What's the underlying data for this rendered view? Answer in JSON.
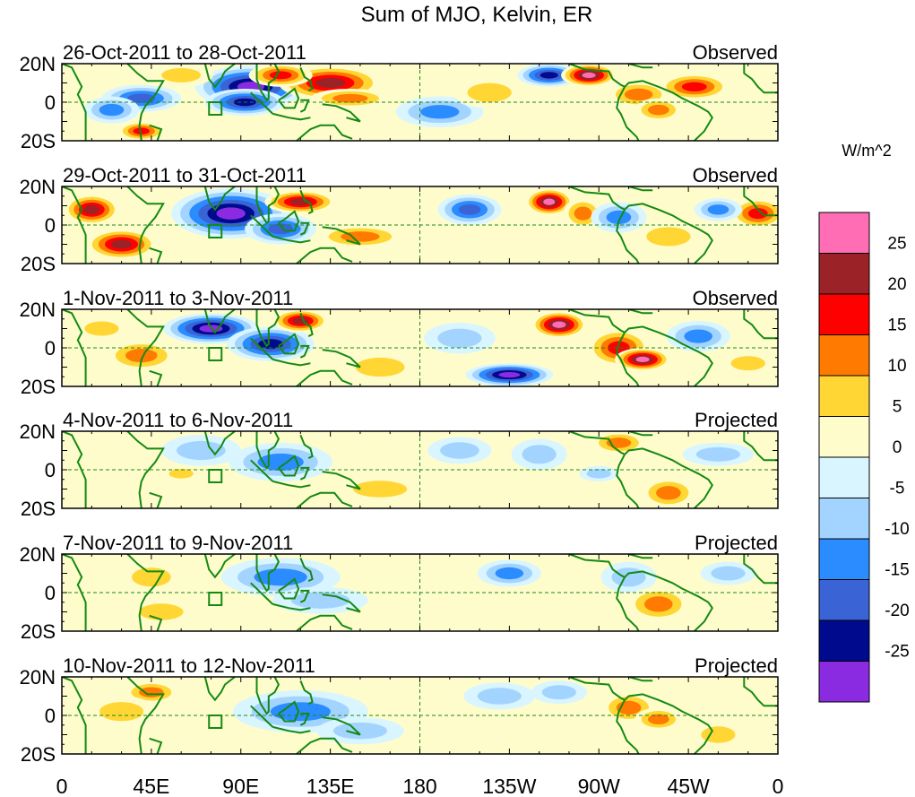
{
  "chart_data": {
    "type": "heatmap",
    "title": "Sum of MJO, Kelvin, ER",
    "units": "W/m^2",
    "x_ticks": [
      "0",
      "45E",
      "90E",
      "135E",
      "180",
      "135W",
      "90W",
      "45W",
      "0"
    ],
    "y_ticks": [
      "20N",
      "0",
      "20S"
    ],
    "xlim_deg_east": [
      0,
      360
    ],
    "ylim_deg": [
      -20,
      20
    ],
    "colorbar": {
      "labels": [
        "25",
        "20",
        "15",
        "10",
        "5",
        "0",
        "-5",
        "-10",
        "-15",
        "-20",
        "-25"
      ],
      "colors_top_to_bottom": [
        "#ff6eb4",
        "#9b2226",
        "#ff0000",
        "#ff7a00",
        "#ffd633",
        "#fffccc",
        "#d9f5ff",
        "#a3d4ff",
        "#2b8cff",
        "#3a63d6",
        "#000a8c",
        "#8a2be2"
      ]
    },
    "panels": [
      {
        "date_range": "26-Oct-2011 to 28-Oct-2011",
        "status": "Observed",
        "blobs": [
          {
            "lon": 95,
            "lat": 8,
            "rlon": 28,
            "rlat": 11,
            "v": -30
          },
          {
            "lon": 92,
            "lat": 0,
            "rlon": 20,
            "rlat": 7,
            "v": -25
          },
          {
            "lon": 40,
            "lat": 2,
            "rlon": 20,
            "rlat": 7,
            "v": -20
          },
          {
            "lon": 25,
            "lat": -4,
            "rlon": 14,
            "rlat": 7,
            "v": -14
          },
          {
            "lon": 135,
            "lat": 10,
            "rlon": 26,
            "rlat": 9,
            "v": 24
          },
          {
            "lon": 145,
            "lat": 2,
            "rlon": 20,
            "rlat": 5,
            "v": 14
          },
          {
            "lon": 110,
            "lat": 14,
            "rlon": 16,
            "rlat": 6,
            "v": 18
          },
          {
            "lon": 245,
            "lat": 14,
            "rlon": 16,
            "rlat": 6,
            "v": -24
          },
          {
            "lon": 265,
            "lat": 14,
            "rlon": 14,
            "rlat": 6,
            "v": 27
          },
          {
            "lon": 290,
            "lat": 4,
            "rlon": 16,
            "rlat": 7,
            "v": 14
          },
          {
            "lon": 300,
            "lat": -4,
            "rlon": 12,
            "rlat": 6,
            "v": 12
          },
          {
            "lon": 318,
            "lat": 8,
            "rlon": 18,
            "rlat": 7,
            "v": 20
          },
          {
            "lon": 40,
            "lat": -15,
            "rlon": 12,
            "rlat": 5,
            "v": 16
          },
          {
            "lon": 190,
            "lat": -5,
            "rlon": 22,
            "rlat": 8,
            "v": -12
          },
          {
            "lon": 215,
            "lat": 5,
            "rlon": 18,
            "rlat": 8,
            "v": 8
          },
          {
            "lon": 60,
            "lat": 14,
            "rlon": 16,
            "rlat": 6,
            "v": 10
          }
        ]
      },
      {
        "date_range": "29-Oct-2011 to 31-Oct-2011",
        "status": "Observed",
        "blobs": [
          {
            "lon": 85,
            "lat": 6,
            "rlon": 30,
            "rlat": 13,
            "v": -30
          },
          {
            "lon": 110,
            "lat": -2,
            "rlon": 18,
            "rlat": 8,
            "v": -16
          },
          {
            "lon": 30,
            "lat": -10,
            "rlon": 18,
            "rlat": 8,
            "v": 25
          },
          {
            "lon": 15,
            "lat": 8,
            "rlon": 14,
            "rlat": 8,
            "v": 22
          },
          {
            "lon": 120,
            "lat": 12,
            "rlon": 18,
            "rlat": 6,
            "v": 22
          },
          {
            "lon": 150,
            "lat": -6,
            "rlon": 22,
            "rlat": 6,
            "v": 14
          },
          {
            "lon": 205,
            "lat": 8,
            "rlon": 16,
            "rlat": 8,
            "v": -16
          },
          {
            "lon": 245,
            "lat": 12,
            "rlon": 12,
            "rlat": 7,
            "v": 26
          },
          {
            "lon": 262,
            "lat": 6,
            "rlon": 10,
            "rlat": 8,
            "v": 15
          },
          {
            "lon": 280,
            "lat": 4,
            "rlon": 14,
            "rlat": 8,
            "v": -14
          },
          {
            "lon": 305,
            "lat": -6,
            "rlon": 18,
            "rlat": 8,
            "v": 8
          },
          {
            "lon": 350,
            "lat": 6,
            "rlon": 14,
            "rlat": 8,
            "v": 20
          },
          {
            "lon": 330,
            "lat": 8,
            "rlon": 12,
            "rlat": 6,
            "v": -12
          }
        ]
      },
      {
        "date_range": "1-Nov-2011 to 3-Nov-2011",
        "status": "Observed",
        "blobs": [
          {
            "lon": 75,
            "lat": 10,
            "rlon": 24,
            "rlat": 8,
            "v": -30
          },
          {
            "lon": 105,
            "lat": 2,
            "rlon": 22,
            "rlat": 9,
            "v": -22
          },
          {
            "lon": 120,
            "lat": 14,
            "rlon": 14,
            "rlat": 6,
            "v": 22
          },
          {
            "lon": 40,
            "lat": -4,
            "rlon": 18,
            "rlat": 8,
            "v": 14
          },
          {
            "lon": 20,
            "lat": 10,
            "rlon": 14,
            "rlat": 6,
            "v": 10
          },
          {
            "lon": 225,
            "lat": -14,
            "rlon": 22,
            "rlat": 6,
            "v": -26
          },
          {
            "lon": 250,
            "lat": 12,
            "rlon": 14,
            "rlat": 7,
            "v": 27
          },
          {
            "lon": 280,
            "lat": 0,
            "rlon": 16,
            "rlat": 10,
            "v": 18
          },
          {
            "lon": 292,
            "lat": -6,
            "rlon": 14,
            "rlat": 6,
            "v": 26
          },
          {
            "lon": 320,
            "lat": 6,
            "rlon": 16,
            "rlat": 8,
            "v": -12
          },
          {
            "lon": 160,
            "lat": -10,
            "rlon": 20,
            "rlat": 8,
            "v": 8
          },
          {
            "lon": 200,
            "lat": 5,
            "rlon": 18,
            "rlat": 8,
            "v": -10
          },
          {
            "lon": 345,
            "lat": -8,
            "rlon": 14,
            "rlat": 6,
            "v": 6
          }
        ]
      },
      {
        "date_range": "4-Nov-2011 to 6-Nov-2011",
        "status": "Projected",
        "blobs": [
          {
            "lon": 110,
            "lat": 4,
            "rlon": 26,
            "rlat": 10,
            "v": -12
          },
          {
            "lon": 70,
            "lat": 10,
            "rlon": 20,
            "rlat": 8,
            "v": -8
          },
          {
            "lon": 60,
            "lat": -2,
            "rlon": 10,
            "rlat": 4,
            "v": 10
          },
          {
            "lon": 35,
            "lat": 2,
            "rlon": 14,
            "rlat": 8,
            "v": 4
          },
          {
            "lon": 200,
            "lat": 10,
            "rlon": 16,
            "rlat": 7,
            "v": -10
          },
          {
            "lon": 240,
            "lat": 8,
            "rlon": 14,
            "rlat": 8,
            "v": -10
          },
          {
            "lon": 280,
            "lat": 14,
            "rlon": 14,
            "rlat": 6,
            "v": 12
          },
          {
            "lon": 305,
            "lat": -12,
            "rlon": 14,
            "rlat": 8,
            "v": 12
          },
          {
            "lon": 270,
            "lat": -2,
            "rlon": 10,
            "rlat": 4,
            "v": -10
          },
          {
            "lon": 160,
            "lat": -10,
            "rlon": 22,
            "rlat": 7,
            "v": 6
          },
          {
            "lon": 330,
            "lat": 8,
            "rlon": 18,
            "rlat": 6,
            "v": -8
          }
        ]
      },
      {
        "date_range": "7-Nov-2011 to 9-Nov-2011",
        "status": "Projected",
        "blobs": [
          {
            "lon": 110,
            "lat": 8,
            "rlon": 30,
            "rlat": 10,
            "v": -12
          },
          {
            "lon": 130,
            "lat": -4,
            "rlon": 24,
            "rlat": 7,
            "v": -8
          },
          {
            "lon": 45,
            "lat": 8,
            "rlon": 16,
            "rlat": 8,
            "v": 10
          },
          {
            "lon": 50,
            "lat": -10,
            "rlon": 18,
            "rlat": 7,
            "v": 8
          },
          {
            "lon": 225,
            "lat": 10,
            "rlon": 16,
            "rlat": 7,
            "v": -12
          },
          {
            "lon": 285,
            "lat": 8,
            "rlon": 14,
            "rlat": 8,
            "v": -10
          },
          {
            "lon": 300,
            "lat": -6,
            "rlon": 16,
            "rlat": 9,
            "v": 12
          },
          {
            "lon": 175,
            "lat": -10,
            "rlon": 24,
            "rlat": 7,
            "v": 4
          },
          {
            "lon": 335,
            "lat": 10,
            "rlon": 14,
            "rlat": 6,
            "v": -6
          }
        ]
      },
      {
        "date_range": "10-Nov-2011 to 12-Nov-2011",
        "status": "Projected",
        "blobs": [
          {
            "lon": 120,
            "lat": 2,
            "rlon": 34,
            "rlat": 11,
            "v": -12
          },
          {
            "lon": 150,
            "lat": -8,
            "rlon": 22,
            "rlat": 7,
            "v": -8
          },
          {
            "lon": 45,
            "lat": 12,
            "rlon": 14,
            "rlat": 6,
            "v": 14
          },
          {
            "lon": 30,
            "lat": 2,
            "rlon": 18,
            "rlat": 8,
            "v": 6
          },
          {
            "lon": 220,
            "lat": 10,
            "rlon": 18,
            "rlat": 7,
            "v": -8
          },
          {
            "lon": 285,
            "lat": 4,
            "rlon": 14,
            "rlat": 8,
            "v": 12
          },
          {
            "lon": 300,
            "lat": -2,
            "rlon": 12,
            "rlat": 6,
            "v": 14
          },
          {
            "lon": 330,
            "lat": -10,
            "rlon": 14,
            "rlat": 7,
            "v": 6
          },
          {
            "lon": 250,
            "lat": 12,
            "rlon": 14,
            "rlat": 6,
            "v": -6
          }
        ]
      }
    ]
  }
}
